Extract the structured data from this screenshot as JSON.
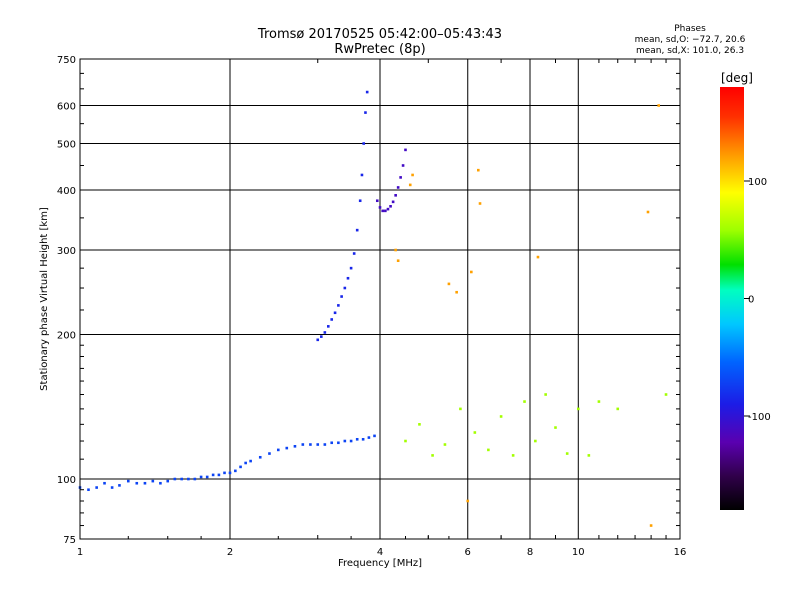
{
  "header": {
    "title": "Tromsø 20170525 05:42:00–05:43:43",
    "subtitle": "RwPretec (8p)"
  },
  "stats": {
    "heading": "Phases",
    "line_o": "mean, sd,O: −72.7, 20.6",
    "line_x": "mean, sd,X: 101.0, 26.3"
  },
  "chart_data": {
    "type": "scatter",
    "x_scale": "log",
    "y_scale": "log",
    "xlabel": "Frequency [MHz]",
    "ylabel": "Stationary phase Virtual Height [km]",
    "xlim": [
      1,
      16
    ],
    "ylim": [
      75,
      750
    ],
    "x_ticks": [
      1,
      2,
      4,
      6,
      8,
      10,
      16
    ],
    "y_ticks": [
      75,
      100,
      200,
      300,
      400,
      500,
      600,
      750
    ],
    "grid": true,
    "colorbar": {
      "label": "[deg]",
      "range": [
        -180,
        180
      ],
      "ticks": [
        100,
        0,
        -100
      ]
    },
    "series": [
      {
        "description": "O-trace E/F1 region",
        "phase_deg": -70,
        "points": [
          [
            1.0,
            96
          ],
          [
            1.04,
            95
          ],
          [
            1.08,
            96
          ],
          [
            1.12,
            98
          ],
          [
            1.16,
            96
          ],
          [
            1.2,
            97
          ],
          [
            1.25,
            99
          ],
          [
            1.3,
            98
          ],
          [
            1.35,
            98
          ],
          [
            1.4,
            99
          ],
          [
            1.45,
            98
          ],
          [
            1.5,
            99
          ],
          [
            1.55,
            100
          ],
          [
            1.6,
            100
          ],
          [
            1.65,
            100
          ],
          [
            1.7,
            100
          ],
          [
            1.75,
            101
          ],
          [
            1.8,
            101
          ],
          [
            1.85,
            102
          ],
          [
            1.9,
            102
          ],
          [
            1.95,
            103
          ],
          [
            2.0,
            103
          ],
          [
            2.05,
            104
          ],
          [
            2.1,
            106
          ],
          [
            2.15,
            108
          ],
          [
            2.2,
            109
          ],
          [
            2.3,
            111
          ],
          [
            2.4,
            113
          ],
          [
            2.5,
            115
          ],
          [
            2.6,
            116
          ],
          [
            2.7,
            117
          ],
          [
            2.8,
            118
          ],
          [
            2.9,
            118
          ],
          [
            3.0,
            118
          ],
          [
            3.1,
            118
          ],
          [
            3.2,
            119
          ],
          [
            3.3,
            119
          ],
          [
            3.4,
            120
          ],
          [
            3.5,
            120
          ],
          [
            3.6,
            121
          ],
          [
            3.7,
            121
          ],
          [
            3.8,
            122
          ],
          [
            3.9,
            123
          ]
        ]
      },
      {
        "description": "O-trace F2 region",
        "phase_deg": -85,
        "points": [
          [
            3.0,
            195
          ],
          [
            3.05,
            198
          ],
          [
            3.1,
            202
          ],
          [
            3.15,
            208
          ],
          [
            3.2,
            215
          ],
          [
            3.25,
            222
          ],
          [
            3.3,
            230
          ],
          [
            3.35,
            240
          ],
          [
            3.4,
            250
          ],
          [
            3.45,
            262
          ],
          [
            3.5,
            275
          ],
          [
            3.55,
            295
          ],
          [
            3.6,
            330
          ],
          [
            3.65,
            380
          ],
          [
            3.68,
            430
          ],
          [
            3.71,
            500
          ],
          [
            3.74,
            580
          ],
          [
            3.77,
            640
          ]
        ]
      },
      {
        "description": "X-trace F2 region",
        "phase_deg": -110,
        "points": [
          [
            3.95,
            380
          ],
          [
            4.0,
            368
          ],
          [
            4.05,
            362
          ],
          [
            4.1,
            362
          ],
          [
            4.15,
            365
          ],
          [
            4.2,
            370
          ],
          [
            4.25,
            378
          ],
          [
            4.3,
            390
          ],
          [
            4.35,
            405
          ],
          [
            4.4,
            425
          ],
          [
            4.45,
            450
          ],
          [
            4.5,
            485
          ]
        ]
      },
      {
        "description": "Scattered echoes",
        "phase_deg": 120,
        "points": [
          [
            4.3,
            300
          ],
          [
            4.35,
            285
          ],
          [
            4.6,
            410
          ],
          [
            4.65,
            430
          ],
          [
            5.5,
            255
          ],
          [
            5.7,
            245
          ],
          [
            6.1,
            270
          ],
          [
            6.3,
            440
          ],
          [
            6.35,
            375
          ],
          [
            8.3,
            290
          ],
          [
            13.8,
            360
          ],
          [
            14.5,
            600
          ],
          [
            14.0,
            80
          ],
          [
            6.0,
            90
          ]
        ]
      },
      {
        "description": "Spread echoes",
        "phase_deg": 60,
        "points": [
          [
            4.5,
            120
          ],
          [
            4.8,
            130
          ],
          [
            5.1,
            112
          ],
          [
            5.4,
            118
          ],
          [
            5.8,
            140
          ],
          [
            6.2,
            125
          ],
          [
            6.6,
            115
          ],
          [
            7.0,
            135
          ],
          [
            7.4,
            112
          ],
          [
            7.8,
            145
          ],
          [
            8.2,
            120
          ],
          [
            8.6,
            150
          ],
          [
            9.0,
            128
          ],
          [
            9.5,
            113
          ],
          [
            10.0,
            140
          ],
          [
            10.5,
            112
          ],
          [
            11.0,
            145
          ],
          [
            12.0,
            140
          ],
          [
            15.0,
            150
          ]
        ]
      }
    ]
  }
}
